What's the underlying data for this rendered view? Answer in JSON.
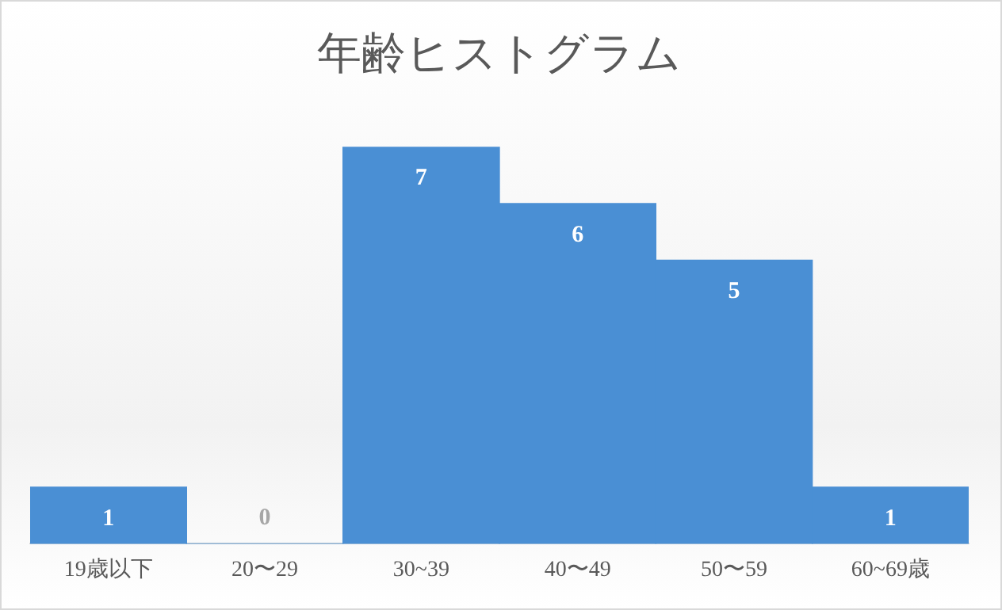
{
  "chart_data": {
    "type": "bar",
    "title": "年齢ヒストグラム",
    "categories": [
      "19歳以下",
      "20〜29",
      "30~39",
      "40〜49",
      "50〜59",
      "60~69歳"
    ],
    "values": [
      1,
      0,
      7,
      6,
      5,
      1
    ],
    "color": "#4a8fd4",
    "data_labels": true,
    "grid": false,
    "legend": false
  }
}
